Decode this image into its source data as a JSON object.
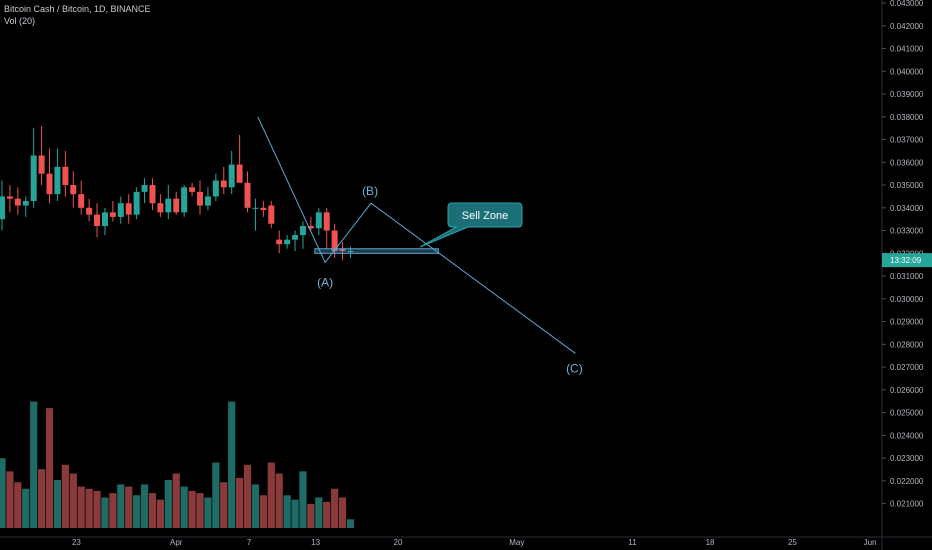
{
  "header": {
    "title": "Bitcoin Cash / Bitcoin, 1D, BINANCE",
    "volume_label": "Vol (20)"
  },
  "price_axis": {
    "labels": [
      "0.043000",
      "0.042000",
      "0.041000",
      "0.040000",
      "0.039000",
      "0.038000",
      "0.037000",
      "0.036000",
      "0.035000",
      "0.034000",
      "0.033000",
      "0.032000",
      "0.031000",
      "0.030000",
      "0.029000",
      "0.028000",
      "0.027000",
      "0.026000",
      "0.025000",
      "0.024000",
      "0.023000",
      "0.022000",
      "0.021000"
    ],
    "last_price_tag": "13:32:09"
  },
  "time_axis": {
    "labels": [
      "23",
      "Apr",
      "7",
      "13",
      "20",
      "May",
      "11",
      "18",
      "25",
      "Jun"
    ]
  },
  "annotations": {
    "wave_A": "(A)",
    "wave_B": "(B)",
    "wave_C": "(C)",
    "callout": "Sell Zone"
  },
  "colors": {
    "up": "#26a69a",
    "down": "#ef5350",
    "vol_up": "#1f6b66",
    "vol_down": "#8a3a3a",
    "line": "#5aa8d6",
    "callout_bg": "#1b6f76",
    "price_tag_bg": "#26a69a"
  },
  "chart_data": {
    "type": "candlestick",
    "symbol": "Bitcoin Cash / Bitcoin",
    "interval": "1D",
    "exchange": "BINANCE",
    "ylim": [
      0.0205,
      0.043
    ],
    "candles": [
      {
        "o": 0.0335,
        "h": 0.0352,
        "l": 0.033,
        "c": 0.0345,
        "v": 3.2
      },
      {
        "o": 0.0345,
        "h": 0.035,
        "l": 0.0338,
        "c": 0.0344,
        "v": 2.6
      },
      {
        "o": 0.0344,
        "h": 0.0349,
        "l": 0.0337,
        "c": 0.0341,
        "v": 2.1
      },
      {
        "o": 0.0341,
        "h": 0.0345,
        "l": 0.0336,
        "c": 0.0343,
        "v": 1.8
      },
      {
        "o": 0.0343,
        "h": 0.0375,
        "l": 0.034,
        "c": 0.0363,
        "v": 5.8
      },
      {
        "o": 0.0363,
        "h": 0.0376,
        "l": 0.035,
        "c": 0.0355,
        "v": 2.7
      },
      {
        "o": 0.0355,
        "h": 0.0366,
        "l": 0.0342,
        "c": 0.0346,
        "v": 5.5
      },
      {
        "o": 0.0346,
        "h": 0.0366,
        "l": 0.0343,
        "c": 0.0358,
        "v": 2.2
      },
      {
        "o": 0.0358,
        "h": 0.0365,
        "l": 0.0345,
        "c": 0.035,
        "v": 2.9
      },
      {
        "o": 0.035,
        "h": 0.0356,
        "l": 0.034,
        "c": 0.0346,
        "v": 2.5
      },
      {
        "o": 0.0346,
        "h": 0.0352,
        "l": 0.0337,
        "c": 0.034,
        "v": 1.9
      },
      {
        "o": 0.034,
        "h": 0.0344,
        "l": 0.0334,
        "c": 0.0337,
        "v": 1.8
      },
      {
        "o": 0.0337,
        "h": 0.0342,
        "l": 0.0327,
        "c": 0.0332,
        "v": 1.7
      },
      {
        "o": 0.0332,
        "h": 0.034,
        "l": 0.0328,
        "c": 0.0338,
        "v": 1.4
      },
      {
        "o": 0.0338,
        "h": 0.0343,
        "l": 0.0334,
        "c": 0.0336,
        "v": 1.6
      },
      {
        "o": 0.0336,
        "h": 0.0345,
        "l": 0.0333,
        "c": 0.0342,
        "v": 2.0
      },
      {
        "o": 0.0342,
        "h": 0.0346,
        "l": 0.0333,
        "c": 0.0337,
        "v": 1.9
      },
      {
        "o": 0.0337,
        "h": 0.0349,
        "l": 0.0335,
        "c": 0.0347,
        "v": 1.5
      },
      {
        "o": 0.0347,
        "h": 0.0353,
        "l": 0.0342,
        "c": 0.035,
        "v": 2.0
      },
      {
        "o": 0.035,
        "h": 0.0353,
        "l": 0.0339,
        "c": 0.0342,
        "v": 1.6
      },
      {
        "o": 0.0342,
        "h": 0.0346,
        "l": 0.0336,
        "c": 0.0338,
        "v": 1.3
      },
      {
        "o": 0.0338,
        "h": 0.035,
        "l": 0.0335,
        "c": 0.0344,
        "v": 2.2
      },
      {
        "o": 0.0344,
        "h": 0.0347,
        "l": 0.0337,
        "c": 0.0338,
        "v": 2.5
      },
      {
        "o": 0.0338,
        "h": 0.035,
        "l": 0.0336,
        "c": 0.0349,
        "v": 1.9
      },
      {
        "o": 0.0349,
        "h": 0.0351,
        "l": 0.0345,
        "c": 0.0347,
        "v": 1.7
      },
      {
        "o": 0.0347,
        "h": 0.0352,
        "l": 0.0337,
        "c": 0.0341,
        "v": 1.6
      },
      {
        "o": 0.0341,
        "h": 0.0349,
        "l": 0.0339,
        "c": 0.0345,
        "v": 1.4
      },
      {
        "o": 0.0345,
        "h": 0.0355,
        "l": 0.0343,
        "c": 0.0352,
        "v": 3.0
      },
      {
        "o": 0.0352,
        "h": 0.0358,
        "l": 0.0346,
        "c": 0.0349,
        "v": 2.1
      },
      {
        "o": 0.0349,
        "h": 0.0365,
        "l": 0.0346,
        "c": 0.0359,
        "v": 5.8
      },
      {
        "o": 0.0359,
        "h": 0.0372,
        "l": 0.0352,
        "c": 0.0351,
        "v": 2.3
      },
      {
        "o": 0.0351,
        "h": 0.0356,
        "l": 0.0338,
        "c": 0.034,
        "v": 2.9
      },
      {
        "o": 0.034,
        "h": 0.0344,
        "l": 0.033,
        "c": 0.034,
        "v": 2.0
      },
      {
        "o": 0.034,
        "h": 0.0343,
        "l": 0.0336,
        "c": 0.0339,
        "v": 1.5
      },
      {
        "o": 0.0341,
        "h": 0.0343,
        "l": 0.0331,
        "c": 0.0333,
        "v": 3.0
      },
      {
        "o": 0.0326,
        "h": 0.033,
        "l": 0.032,
        "c": 0.0324,
        "v": 2.5
      },
      {
        "o": 0.0324,
        "h": 0.0328,
        "l": 0.0322,
        "c": 0.0326,
        "v": 1.5
      },
      {
        "o": 0.0326,
        "h": 0.033,
        "l": 0.0321,
        "c": 0.0328,
        "v": 1.3
      },
      {
        "o": 0.0328,
        "h": 0.0334,
        "l": 0.0322,
        "c": 0.0332,
        "v": 2.6
      },
      {
        "o": 0.0332,
        "h": 0.0336,
        "l": 0.033,
        "c": 0.0331,
        "v": 1.1
      },
      {
        "o": 0.0331,
        "h": 0.034,
        "l": 0.0328,
        "c": 0.0338,
        "v": 1.4
      },
      {
        "o": 0.0338,
        "h": 0.034,
        "l": 0.0322,
        "c": 0.033,
        "v": 1.2
      },
      {
        "o": 0.033,
        "h": 0.0333,
        "l": 0.0318,
        "c": 0.0321,
        "v": 1.8
      },
      {
        "o": 0.0322,
        "h": 0.0325,
        "l": 0.0317,
        "c": 0.0321,
        "v": 1.4
      },
      {
        "o": 0.0321,
        "h": 0.0323,
        "l": 0.0318,
        "c": 0.0321,
        "v": 0.4
      }
    ],
    "wave_points": [
      {
        "label": "(A)",
        "price": 0.0316
      },
      {
        "label": "(B)",
        "price": 0.0342
      },
      {
        "label": "(C)",
        "price": 0.0276
      }
    ],
    "sell_zone": {
      "price_low": 0.032,
      "price_high": 0.0322
    },
    "grid": false,
    "legend": "top-left"
  }
}
